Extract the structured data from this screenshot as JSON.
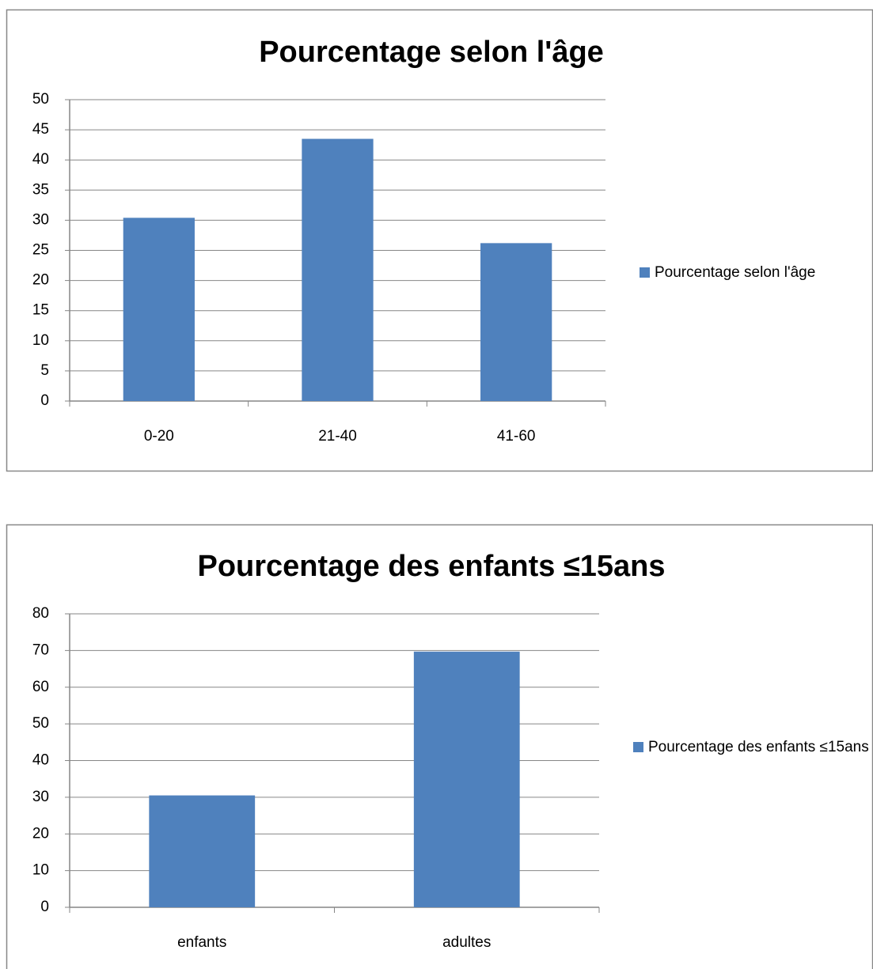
{
  "chart_data": [
    {
      "type": "bar",
      "title": "Pourcentage selon l'âge",
      "categories": [
        "0-20",
        "21-40",
        "41-60"
      ],
      "series": [
        {
          "name": "Pourcentage selon l'âge",
          "color": "#4f81bd",
          "values": [
            30.4,
            43.5,
            26.2
          ]
        }
      ],
      "ylim": [
        0,
        50
      ],
      "yticks": [
        0,
        5,
        10,
        15,
        20,
        25,
        30,
        35,
        40,
        45,
        50
      ],
      "grid": true,
      "legend": "right"
    },
    {
      "type": "bar",
      "title": "Pourcentage des enfants ≤15ans",
      "categories": [
        "enfants",
        "adultes"
      ],
      "series": [
        {
          "name": "Pourcentage des enfants ≤15ans",
          "color": "#4f81bd",
          "values": [
            30.5,
            69.7
          ]
        }
      ],
      "ylim": [
        0,
        80
      ],
      "yticks": [
        0,
        10,
        20,
        30,
        40,
        50,
        60,
        70,
        80
      ],
      "grid": true,
      "legend": "right"
    }
  ]
}
